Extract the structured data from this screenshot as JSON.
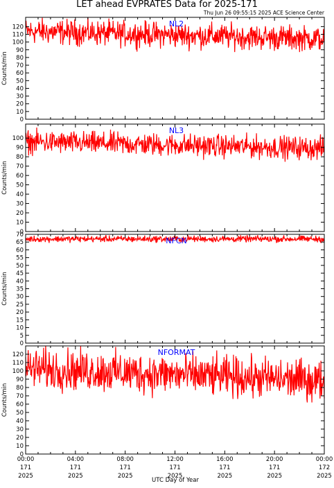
{
  "title": "LET ahead EVPRATES Data for 2025-171",
  "timestamp": "Thu Jun 26 09:55:15 2025 ACE Science Center",
  "xlabel": "UTC Day of Year",
  "colors": {
    "series": "#ff0000",
    "panel_label": "#0000ff",
    "axes": "#000000",
    "background": "#ffffff"
  },
  "chart_data": [
    {
      "type": "line",
      "panel_label": "NL2",
      "ylabel": "Counts/min",
      "ylim": [
        0,
        132
      ],
      "yticks": [
        0,
        10,
        20,
        30,
        40,
        50,
        60,
        70,
        80,
        90,
        100,
        110,
        120
      ],
      "xlim": [
        0,
        24
      ],
      "series": [
        {
          "mean_start": 114,
          "mean_end": 104,
          "noise": 8,
          "min": 87,
          "max": 132
        }
      ]
    },
    {
      "type": "line",
      "panel_label": "NL3",
      "ylabel": "Counts/min",
      "ylim": [
        0,
        115
      ],
      "yticks": [
        0,
        10,
        20,
        30,
        40,
        50,
        60,
        70,
        80,
        90,
        100
      ],
      "xlim": [
        0,
        24
      ],
      "series": [
        {
          "mean_start": 96,
          "mean_end": 89,
          "noise": 6,
          "min": 74,
          "max": 113
        }
      ]
    },
    {
      "type": "line",
      "panel_label": "NFCN",
      "ylabel": "Counts/min",
      "ylim": [
        0,
        70
      ],
      "yticks": [
        0,
        5,
        10,
        15,
        20,
        25,
        30,
        35,
        40,
        45,
        50,
        55,
        60,
        65,
        70
      ],
      "xlim": [
        0,
        24
      ],
      "series": [
        {
          "mean_start": 67,
          "mean_end": 67,
          "noise": 1,
          "min": 64,
          "max": 70
        }
      ]
    },
    {
      "type": "line",
      "panel_label": "NFORMAT",
      "ylabel": "Counts/min",
      "ylim": [
        0,
        130
      ],
      "yticks": [
        0,
        10,
        20,
        30,
        40,
        50,
        60,
        70,
        80,
        90,
        100,
        110,
        120
      ],
      "xlim": [
        0,
        24
      ],
      "series": [
        {
          "mean_start": 103,
          "mean_end": 88,
          "noise": 12,
          "min": 62,
          "max": 130
        }
      ]
    }
  ],
  "x_ticks": [
    {
      "value": 0,
      "time": "00:00",
      "doy": "171",
      "year": "2025"
    },
    {
      "value": 4,
      "time": "04:00",
      "doy": "171",
      "year": "2025"
    },
    {
      "value": 8,
      "time": "08:00",
      "doy": "171",
      "year": "2025"
    },
    {
      "value": 12,
      "time": "12:00",
      "doy": "171",
      "year": "2025"
    },
    {
      "value": 16,
      "time": "16:00",
      "doy": "171",
      "year": "2025"
    },
    {
      "value": 20,
      "time": "20:00",
      "doy": "171",
      "year": "2025"
    },
    {
      "value": 24,
      "time": "00:00",
      "doy": "172",
      "year": "2025"
    }
  ]
}
